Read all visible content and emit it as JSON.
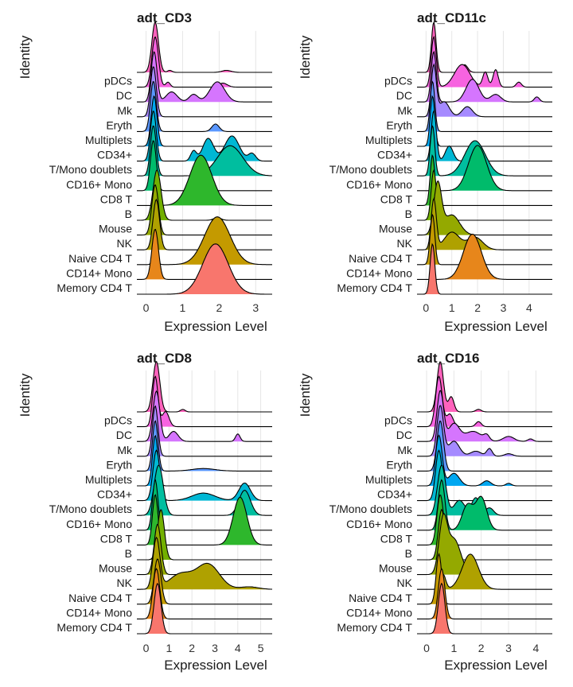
{
  "chart_data": [
    {
      "type": "ridgeline",
      "title": "adt_CD3",
      "xlabel": "Expression Level",
      "ylabel": "Identity",
      "xlim": [
        -0.25,
        3.45
      ],
      "xticks": [
        0,
        1,
        2,
        3
      ],
      "grid": "vertical",
      "ridges": [
        {
          "name": "Memory CD4 T",
          "color": "#F8766D",
          "peaks": [
            [
              1.9,
              0.35,
              1.0
            ]
          ]
        },
        {
          "name": "CD14+ Mono",
          "color": "#E7861B",
          "peaks": [
            [
              0.25,
              0.09,
              1.0
            ]
          ]
        },
        {
          "name": "Naive CD4 T",
          "color": "#C49A00",
          "peaks": [
            [
              1.95,
              0.35,
              0.95
            ],
            [
              0.25,
              0.07,
              0.1
            ]
          ]
        },
        {
          "name": "NK",
          "color": "#AFA100",
          "peaks": [
            [
              0.28,
              0.09,
              1.0
            ]
          ]
        },
        {
          "name": "Mouse",
          "color": "#94A900",
          "peaks": [
            [
              0.25,
              0.09,
              1.0
            ]
          ]
        },
        {
          "name": "B",
          "color": "#72B000",
          "peaks": [
            [
              0.3,
              0.11,
              1.0
            ],
            [
              1.95,
              0.1,
              0.05
            ]
          ]
        },
        {
          "name": "CD8 T",
          "color": "#2EB72C",
          "peaks": [
            [
              1.5,
              0.3,
              1.0
            ]
          ]
        },
        {
          "name": "CD16+ Mono",
          "color": "#00BB6B",
          "peaks": [
            [
              0.2,
              0.08,
              1.0
            ]
          ]
        },
        {
          "name": "T/Mono doublets",
          "color": "#00BE9F",
          "peaks": [
            [
              0.2,
              0.08,
              1.0
            ],
            [
              2.3,
              0.35,
              0.6
            ]
          ]
        },
        {
          "name": "CD34+",
          "color": "#00B7D4",
          "peaks": [
            [
              0.2,
              0.08,
              1.0
            ],
            [
              1.7,
              0.15,
              0.45
            ],
            [
              2.35,
              0.2,
              0.5
            ],
            [
              1.3,
              0.08,
              0.2
            ],
            [
              2.9,
              0.1,
              0.15
            ]
          ]
        },
        {
          "name": "Multiplets",
          "color": "#00A7F0",
          "peaks": [
            [
              0.22,
              0.08,
              1.0
            ]
          ]
        },
        {
          "name": "Eryth",
          "color": "#5A97FF",
          "peaks": [
            [
              0.2,
              0.08,
              1.0
            ],
            [
              1.9,
              0.1,
              0.15
            ]
          ]
        },
        {
          "name": "Mk",
          "color": "#A58AFF",
          "peaks": [
            [
              0.2,
              0.08,
              1.0
            ]
          ]
        },
        {
          "name": "DC",
          "color": "#D575FE",
          "peaks": [
            [
              0.22,
              0.08,
              1.0
            ],
            [
              0.7,
              0.15,
              0.2
            ],
            [
              1.3,
              0.12,
              0.15
            ],
            [
              1.95,
              0.2,
              0.4
            ]
          ]
        },
        {
          "name": "pDCs",
          "color": "#F763E0",
          "peaks": [
            [
              0.25,
              0.09,
              1.0
            ],
            [
              0.6,
              0.06,
              0.1
            ],
            [
              2.1,
              0.12,
              0.08
            ]
          ]
        },
        {
          "name": "",
          "color": "#FF62BC",
          "peaks": [
            [
              0.25,
              0.09,
              1.0
            ],
            [
              0.65,
              0.06,
              0.04
            ],
            [
              2.2,
              0.12,
              0.04
            ]
          ]
        }
      ]
    },
    {
      "type": "ridgeline",
      "title": "adt_CD11c",
      "xlabel": "Expression Level",
      "ylabel": "Identity",
      "xlim": [
        -0.35,
        4.9
      ],
      "xticks": [
        0,
        1,
        2,
        3,
        4
      ],
      "grid": "vertical",
      "ridges": [
        {
          "name": "Memory CD4 T",
          "color": "#F8766D",
          "peaks": [
            [
              0.25,
              0.09,
              1.0
            ]
          ]
        },
        {
          "name": "CD14+ Mono",
          "color": "#E7861B",
          "peaks": [
            [
              1.8,
              0.35,
              0.9
            ]
          ]
        },
        {
          "name": "Naive CD4 T",
          "color": "#C49A00",
          "peaks": [
            [
              0.25,
              0.09,
              1.0
            ]
          ]
        },
        {
          "name": "NK",
          "color": "#AFA100",
          "peaks": [
            [
              0.3,
              0.1,
              1.0
            ],
            [
              1.0,
              0.3,
              0.35
            ],
            [
              1.9,
              0.3,
              0.25
            ]
          ]
        },
        {
          "name": "Mouse",
          "color": "#94A900",
          "peaks": [
            [
              0.45,
              0.15,
              1.0
            ],
            [
              1.0,
              0.3,
              0.4
            ]
          ]
        },
        {
          "name": "B",
          "color": "#72B000",
          "peaks": [
            [
              0.3,
              0.1,
              1.0
            ]
          ]
        },
        {
          "name": "CD8 T",
          "color": "#2EB72C",
          "peaks": [
            [
              0.25,
              0.09,
              1.0
            ]
          ]
        },
        {
          "name": "CD16+ Mono",
          "color": "#00BB6B",
          "peaks": [
            [
              2.0,
              0.35,
              0.9
            ]
          ]
        },
        {
          "name": "T/Mono doublets",
          "color": "#00BE9F",
          "peaks": [
            [
              0.25,
              0.09,
              1.0
            ],
            [
              1.9,
              0.4,
              0.7
            ]
          ]
        },
        {
          "name": "CD34+",
          "color": "#00B7D4",
          "peaks": [
            [
              0.3,
              0.1,
              1.0
            ],
            [
              0.9,
              0.15,
              0.3
            ]
          ]
        },
        {
          "name": "Multiplets",
          "color": "#00A7F0",
          "peaks": [
            [
              0.25,
              0.09,
              1.0
            ]
          ]
        },
        {
          "name": "Eryth",
          "color": "#5A97FF",
          "peaks": [
            [
              0.25,
              0.09,
              1.0
            ]
          ]
        },
        {
          "name": "Mk",
          "color": "#A58AFF",
          "peaks": [
            [
              0.3,
              0.1,
              1.0
            ],
            [
              0.7,
              0.2,
              0.3
            ],
            [
              1.6,
              0.2,
              0.2
            ]
          ]
        },
        {
          "name": "DC",
          "color": "#D575FE",
          "peaks": [
            [
              0.3,
              0.1,
              1.0
            ],
            [
              1.8,
              0.25,
              0.45
            ],
            [
              2.7,
              0.2,
              0.15
            ],
            [
              4.3,
              0.1,
              0.1
            ]
          ]
        },
        {
          "name": "pDCs",
          "color": "#F763E0",
          "peaks": [
            [
              0.3,
              0.1,
              1.0
            ],
            [
              1.4,
              0.3,
              0.45
            ],
            [
              2.3,
              0.1,
              0.3
            ],
            [
              2.7,
              0.1,
              0.35
            ],
            [
              3.6,
              0.1,
              0.1
            ]
          ]
        },
        {
          "name": "",
          "color": "#FF62BC",
          "peaks": [
            [
              0.3,
              0.09,
              1.0
            ],
            [
              1.5,
              0.12,
              0.15
            ]
          ]
        }
      ]
    },
    {
      "type": "ridgeline",
      "title": "adt_CD8",
      "xlabel": "Expression Level",
      "ylabel": "Identity",
      "xlim": [
        -0.4,
        5.5
      ],
      "xticks": [
        0,
        1,
        2,
        3,
        4,
        5
      ],
      "grid": "vertical",
      "ridges": [
        {
          "name": "Memory CD4 T",
          "color": "#F8766D",
          "peaks": [
            [
              0.5,
              0.15,
              1.0
            ]
          ]
        },
        {
          "name": "CD14+ Mono",
          "color": "#E7861B",
          "peaks": [
            [
              0.45,
              0.15,
              1.0
            ]
          ]
        },
        {
          "name": "Naive CD4 T",
          "color": "#C49A00",
          "peaks": [
            [
              0.5,
              0.15,
              0.9
            ]
          ]
        },
        {
          "name": "NK",
          "color": "#AFA100",
          "peaks": [
            [
              0.45,
              0.15,
              1.0
            ],
            [
              1.5,
              0.5,
              0.3
            ],
            [
              2.7,
              0.5,
              0.5
            ],
            [
              4.5,
              0.4,
              0.05
            ]
          ]
        },
        {
          "name": "Mouse",
          "color": "#94A900",
          "peaks": [
            [
              0.5,
              0.15,
              1.0
            ]
          ]
        },
        {
          "name": "B",
          "color": "#72B000",
          "peaks": [
            [
              0.65,
              0.15,
              1.0
            ]
          ]
        },
        {
          "name": "CD8 T",
          "color": "#2EB72C",
          "peaks": [
            [
              0.4,
              0.12,
              1.0
            ],
            [
              4.1,
              0.3,
              0.95
            ]
          ]
        },
        {
          "name": "CD16+ Mono",
          "color": "#00BB6B",
          "peaks": [
            [
              0.4,
              0.12,
              1.0
            ]
          ]
        },
        {
          "name": "T/Mono doublets",
          "color": "#00BE9F",
          "peaks": [
            [
              0.55,
              0.2,
              1.0
            ],
            [
              4.3,
              0.25,
              0.5
            ]
          ]
        },
        {
          "name": "CD34+",
          "color": "#00B7D4",
          "peaks": [
            [
              0.45,
              0.15,
              1.0
            ],
            [
              2.5,
              0.5,
              0.15
            ],
            [
              4.3,
              0.25,
              0.35
            ]
          ]
        },
        {
          "name": "Multiplets",
          "color": "#00A7F0",
          "peaks": [
            [
              0.4,
              0.12,
              1.0
            ]
          ]
        },
        {
          "name": "Eryth",
          "color": "#5A97FF",
          "peaks": [
            [
              0.4,
              0.12,
              1.0
            ],
            [
              2.5,
              0.5,
              0.05
            ]
          ]
        },
        {
          "name": "Mk",
          "color": "#A58AFF",
          "peaks": [
            [
              0.4,
              0.12,
              1.0
            ]
          ]
        },
        {
          "name": "DC",
          "color": "#D575FE",
          "peaks": [
            [
              0.45,
              0.15,
              1.0
            ],
            [
              1.2,
              0.2,
              0.2
            ],
            [
              4.0,
              0.1,
              0.15
            ]
          ]
        },
        {
          "name": "pDCs",
          "color": "#F763E0",
          "peaks": [
            [
              0.4,
              0.12,
              1.0
            ],
            [
              0.85,
              0.15,
              0.3
            ]
          ]
        },
        {
          "name": "",
          "color": "#FF62BC",
          "peaks": [
            [
              0.45,
              0.15,
              1.0
            ],
            [
              1.6,
              0.1,
              0.05
            ]
          ]
        }
      ]
    },
    {
      "type": "ridgeline",
      "title": "adt_CD16",
      "xlabel": "Expression Level",
      "ylabel": "Identity",
      "xlim": [
        -0.35,
        4.6
      ],
      "xticks": [
        0,
        1,
        2,
        3,
        4
      ],
      "grid": "vertical",
      "ridges": [
        {
          "name": "Memory CD4 T",
          "color": "#F8766D",
          "peaks": [
            [
              0.55,
              0.12,
              1.0
            ]
          ]
        },
        {
          "name": "CD14+ Mono",
          "color": "#E7861B",
          "peaks": [
            [
              0.55,
              0.12,
              1.0
            ]
          ]
        },
        {
          "name": "Naive CD4 T",
          "color": "#C49A00",
          "peaks": [
            [
              0.45,
              0.1,
              1.0
            ]
          ]
        },
        {
          "name": "NK",
          "color": "#AFA100",
          "peaks": [
            [
              1.6,
              0.3,
              0.7
            ],
            [
              0.6,
              0.1,
              0.3
            ]
          ]
        },
        {
          "name": "Mouse",
          "color": "#94A900",
          "peaks": [
            [
              0.6,
              0.15,
              1.0
            ],
            [
              1.0,
              0.25,
              0.7
            ]
          ]
        },
        {
          "name": "B",
          "color": "#72B000",
          "peaks": [
            [
              0.55,
              0.12,
              1.0
            ]
          ]
        },
        {
          "name": "CD8 T",
          "color": "#2EB72C",
          "peaks": [
            [
              0.5,
              0.12,
              1.0
            ]
          ]
        },
        {
          "name": "CD16+ Mono",
          "color": "#00BB6B",
          "peaks": [
            [
              0.55,
              0.12,
              1.0
            ],
            [
              1.5,
              0.2,
              0.5
            ],
            [
              2.0,
              0.2,
              0.65
            ]
          ]
        },
        {
          "name": "T/Mono doublets",
          "color": "#00BE9F",
          "peaks": [
            [
              0.55,
              0.15,
              1.0
            ],
            [
              1.2,
              0.2,
              0.3
            ],
            [
              1.8,
              0.15,
              0.35
            ],
            [
              2.3,
              0.15,
              0.15
            ]
          ]
        },
        {
          "name": "CD34+",
          "color": "#00B7D4",
          "peaks": [
            [
              0.45,
              0.12,
              1.0
            ]
          ]
        },
        {
          "name": "Multiplets",
          "color": "#00A7F0",
          "peaks": [
            [
              0.45,
              0.12,
              1.0
            ],
            [
              1.0,
              0.2,
              0.25
            ],
            [
              2.2,
              0.15,
              0.1
            ],
            [
              3.0,
              0.1,
              0.05
            ]
          ]
        },
        {
          "name": "Eryth",
          "color": "#5A97FF",
          "peaks": [
            [
              0.5,
              0.12,
              1.0
            ]
          ]
        },
        {
          "name": "Mk",
          "color": "#A58AFF",
          "peaks": [
            [
              0.5,
              0.12,
              1.0
            ],
            [
              1.0,
              0.2,
              0.3
            ],
            [
              1.8,
              0.2,
              0.1
            ],
            [
              2.3,
              0.1,
              0.15
            ],
            [
              3.0,
              0.15,
              0.05
            ]
          ]
        },
        {
          "name": "DC",
          "color": "#D575FE",
          "peaks": [
            [
              0.5,
              0.12,
              1.0
            ],
            [
              1.0,
              0.2,
              0.35
            ],
            [
              1.7,
              0.3,
              0.2
            ],
            [
              2.2,
              0.1,
              0.1
            ],
            [
              3.0,
              0.2,
              0.1
            ],
            [
              3.8,
              0.1,
              0.05
            ]
          ]
        },
        {
          "name": "pDCs",
          "color": "#F763E0",
          "peaks": [
            [
              0.45,
              0.12,
              1.0
            ],
            [
              0.85,
              0.12,
              0.25
            ],
            [
              1.9,
              0.1,
              0.1
            ]
          ]
        },
        {
          "name": "",
          "color": "#FF62BC",
          "peaks": [
            [
              0.5,
              0.12,
              1.0
            ],
            [
              0.9,
              0.1,
              0.3
            ],
            [
              1.9,
              0.1,
              0.05
            ]
          ]
        }
      ]
    }
  ]
}
